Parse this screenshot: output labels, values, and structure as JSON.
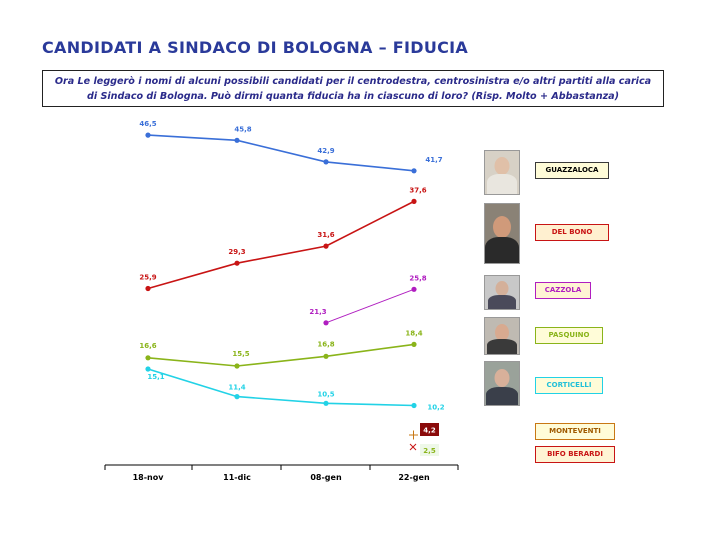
{
  "title": "CANDIDATI A SINDACO DI BOLOGNA – FIDUCIA",
  "question": "Ora Le leggerò i nomi di alcuni possibili candidati per il centrodestra, centrosinistra e/o altri partiti alla carica di Sindaco di Bologna. Può dirmi quanta fiducia ha in ciascuno di loro? (Risp. Molto + Abbastanza)",
  "colors": {
    "guazzaloca": "#3a6fd8",
    "delbono": "#c81414",
    "cazzola": "#b01ec0",
    "pasquino": "#8ab41a",
    "corticelli": "#22d2e6",
    "monteventi": "#c87814",
    "bifo": "#c81414"
  },
  "chart_data": {
    "type": "line",
    "categories": [
      "18-nov",
      "11-dic",
      "08-gen",
      "22-gen"
    ],
    "series": [
      {
        "key": "guazzaloca",
        "name": "GUAZZALOCA",
        "values": [
          46.5,
          45.8,
          42.9,
          41.7
        ],
        "labels": [
          "46,5",
          "45,8",
          "42,9",
          "41,7"
        ]
      },
      {
        "key": "delbono",
        "name": "DEL BONO",
        "values": [
          25.9,
          29.3,
          31.6,
          37.6
        ],
        "labels": [
          "25,9",
          "29,3",
          "31,6",
          "37,6"
        ]
      },
      {
        "key": "cazzola",
        "name": "CAZZOLA",
        "values": [
          null,
          null,
          21.3,
          25.8
        ],
        "labels": [
          "",
          "",
          "21,3",
          "25,8"
        ]
      },
      {
        "key": "pasquino",
        "name": "PASQUINO",
        "values": [
          16.6,
          15.5,
          16.8,
          18.4
        ],
        "labels": [
          "16,6",
          "15,5",
          "16,8",
          "18,4"
        ]
      },
      {
        "key": "corticelli",
        "name": "CORTICELLI",
        "values": [
          15.1,
          11.4,
          10.5,
          10.2
        ],
        "labels": [
          "15,1",
          "11,4",
          "10,5",
          "10,2"
        ]
      }
    ],
    "single_points": [
      {
        "key": "monteventi",
        "name": "MONTEVENTI",
        "category": "22-gen",
        "value": 4.2,
        "label": "4,2",
        "marker": "+"
      },
      {
        "key": "bifo",
        "name": "BIFO BERARDI",
        "category": "22-gen",
        "value": 2.5,
        "label": "2,5",
        "marker": "x"
      }
    ],
    "legend": "right, name boxes with photos"
  }
}
